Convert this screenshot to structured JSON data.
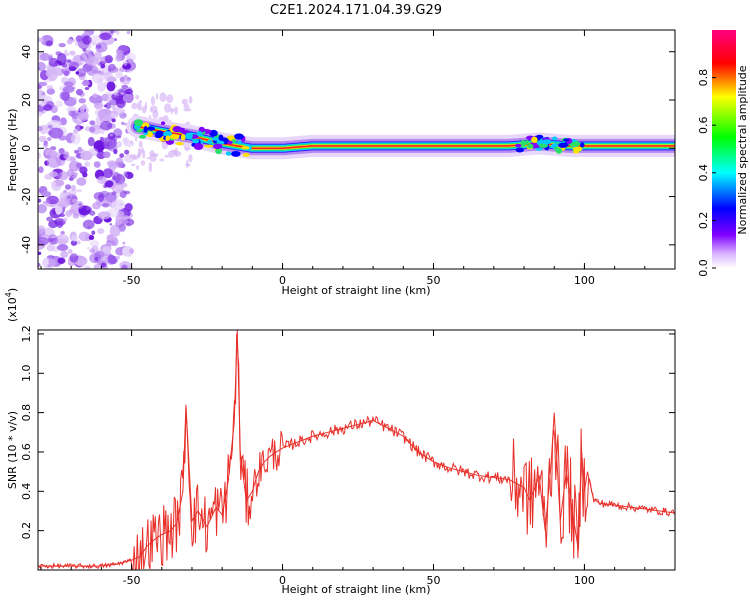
{
  "page": {
    "title": "C2E1.2024.171.04.39.G29"
  },
  "chart_data": [
    {
      "type": "heatmap",
      "title": "C2E1.2024.171.04.39.G29",
      "xlabel": "Height of straight line (km)",
      "ylabel": "Frequency (Hz)",
      "xlim": [
        -81,
        130
      ],
      "ylim": [
        -50,
        49
      ],
      "xticks": [
        -50,
        0,
        50,
        100
      ],
      "yticks": [
        40,
        20,
        0,
        -20,
        -40
      ],
      "colorbar": {
        "label": "Normalized spectral amplitude",
        "range": [
          0,
          1
        ],
        "ticks": [
          0.0,
          0.2,
          0.4,
          0.6,
          0.8
        ],
        "colormap": [
          "#ffffff",
          "#7f00ff",
          "#0000ff",
          "#00ffff",
          "#00ff00",
          "#ffff00",
          "#ff0000",
          "#ff0080"
        ]
      },
      "noise_region": {
        "x_from": -81,
        "x_to": -50,
        "description_color": "#8a2be2"
      },
      "ridge": [
        {
          "x": -48,
          "freq": 9
        },
        {
          "x": -40,
          "freq": 7
        },
        {
          "x": -30,
          "freq": 5
        },
        {
          "x": -20,
          "freq": 2
        },
        {
          "x": -10,
          "freq": 0
        },
        {
          "x": 0,
          "freq": 0
        },
        {
          "x": 10,
          "freq": 1
        },
        {
          "x": 30,
          "freq": 1
        },
        {
          "x": 50,
          "freq": 1
        },
        {
          "x": 75,
          "freq": 1
        },
        {
          "x": 85,
          "freq": 2
        },
        {
          "x": 95,
          "freq": 1
        },
        {
          "x": 100,
          "freq": 1
        },
        {
          "x": 130,
          "freq": 1
        }
      ]
    },
    {
      "type": "line",
      "xlabel": "Height of straight line (km)",
      "ylabel": "SNR (10 * v/v)",
      "y_multiplier_label": "(x10",
      "y_multiplier_exp": "4",
      "y_multiplier_suffix": ")",
      "xlim": [
        -81,
        130
      ],
      "ylim": [
        0,
        1.22
      ],
      "xticks": [
        -50,
        0,
        50,
        100
      ],
      "yticks": [
        0.2,
        0.4,
        0.6,
        0.8,
        1.0,
        1.2
      ],
      "color": "#e8302a",
      "series": [
        {
          "x": [
            -81,
            -70,
            -60,
            -55,
            -50,
            -47,
            -45,
            -42,
            -40,
            -37,
            -35,
            -33,
            -32,
            -30,
            -28,
            -25,
            -22,
            -20,
            -18,
            -16,
            -15,
            -14,
            -12,
            -10,
            -8,
            -6,
            -4,
            -2,
            0,
            5,
            10,
            15,
            20,
            25,
            30,
            35,
            40,
            45,
            50,
            55,
            60,
            65,
            70,
            75,
            80,
            82,
            85,
            87,
            89,
            90,
            92,
            94,
            96,
            98,
            99,
            100,
            101,
            103,
            105,
            110,
            115,
            120,
            125,
            130
          ],
          "y": [
            0.02,
            0.02,
            0.02,
            0.03,
            0.05,
            0.07,
            0.12,
            0.16,
            0.18,
            0.2,
            0.24,
            0.4,
            0.84,
            0.25,
            0.3,
            0.22,
            0.32,
            0.28,
            0.45,
            0.75,
            1.22,
            0.6,
            0.35,
            0.4,
            0.5,
            0.55,
            0.58,
            0.6,
            0.62,
            0.65,
            0.68,
            0.7,
            0.72,
            0.74,
            0.76,
            0.72,
            0.68,
            0.6,
            0.55,
            0.52,
            0.5,
            0.48,
            0.47,
            0.46,
            0.42,
            0.35,
            0.48,
            0.2,
            0.55,
            0.8,
            0.25,
            0.5,
            0.3,
            0.1,
            0.62,
            0.4,
            0.5,
            0.36,
            0.34,
            0.33,
            0.32,
            0.31,
            0.3,
            0.29
          ]
        }
      ]
    }
  ]
}
